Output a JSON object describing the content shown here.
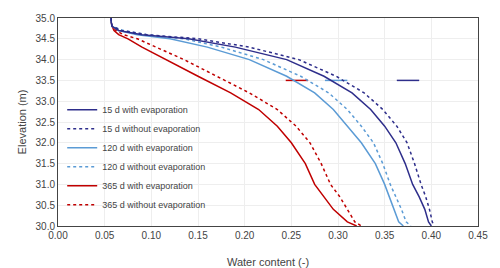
{
  "chart_data": {
    "type": "line",
    "xlabel": "Water content (-)",
    "ylabel": "Elevation (m)",
    "xlim": [
      0,
      0.45
    ],
    "ylim": [
      30,
      35
    ],
    "xticks": [
      {
        "value": 0,
        "label": "0.00"
      },
      {
        "value": 0.05,
        "label": "0.05"
      },
      {
        "value": 0.1,
        "label": "0.10"
      },
      {
        "value": 0.15,
        "label": "0.15"
      },
      {
        "value": 0.2,
        "label": "0.20"
      },
      {
        "value": 0.25,
        "label": "0.25"
      },
      {
        "value": 0.3,
        "label": "0.30"
      },
      {
        "value": 0.35,
        "label": "0.35"
      },
      {
        "value": 0.4,
        "label": "0.40"
      },
      {
        "value": 0.45,
        "label": "0.45"
      }
    ],
    "yticks": [
      {
        "value": 30,
        "label": "30.0"
      },
      {
        "value": 30.5,
        "label": "30.5"
      },
      {
        "value": 31,
        "label": "31.0"
      },
      {
        "value": 31.5,
        "label": "31.5"
      },
      {
        "value": 32,
        "label": "32.0"
      },
      {
        "value": 32.5,
        "label": "32.5"
      },
      {
        "value": 33,
        "label": "33.0"
      },
      {
        "value": 33.5,
        "label": "33.5"
      },
      {
        "value": 34,
        "label": "34.0"
      },
      {
        "value": 34.5,
        "label": "34.5"
      },
      {
        "value": 35,
        "label": "35.0"
      }
    ],
    "grid": true,
    "legend": "center left",
    "series": [
      {
        "name": "15 d with evaporation",
        "color": "#2E2E8B",
        "line_style": "solid",
        "x": [
          0.057,
          0.057,
          0.058,
          0.065,
          0.09,
          0.14,
          0.19,
          0.245,
          0.285,
          0.315,
          0.335,
          0.35,
          0.362,
          0.372,
          0.38,
          0.387,
          0.393,
          0.397,
          0.4
        ],
        "values": [
          35.0,
          34.9,
          34.8,
          34.7,
          34.6,
          34.5,
          34.3,
          34.0,
          33.6,
          33.2,
          32.8,
          32.4,
          32.0,
          31.5,
          31.0,
          30.7,
          30.4,
          30.1,
          30.0
        ]
      },
      {
        "name": "15 d without evaporation",
        "color": "#2E2E8B",
        "line_style": "dotted",
        "x": [
          0.057,
          0.057,
          0.058,
          0.068,
          0.095,
          0.15,
          0.205,
          0.258,
          0.298,
          0.328,
          0.348,
          0.363,
          0.374,
          0.382,
          0.389,
          0.394,
          0.398,
          0.401,
          0.403
        ],
        "values": [
          35.0,
          34.9,
          34.8,
          34.7,
          34.6,
          34.5,
          34.3,
          34.0,
          33.6,
          33.2,
          32.8,
          32.4,
          32.0,
          31.5,
          31.0,
          30.7,
          30.4,
          30.1,
          30.0
        ]
      },
      {
        "name": "120 d with evaporation",
        "color": "#5B9BD5",
        "line_style": "solid",
        "x": [
          0.057,
          0.057,
          0.058,
          0.065,
          0.085,
          0.12,
          0.16,
          0.205,
          0.245,
          0.275,
          0.295,
          0.31,
          0.325,
          0.34,
          0.35,
          0.355,
          0.36,
          0.365,
          0.37
        ],
        "values": [
          35.0,
          34.9,
          34.8,
          34.7,
          34.6,
          34.5,
          34.3,
          34.0,
          33.6,
          33.2,
          32.8,
          32.4,
          32.0,
          31.5,
          31.0,
          30.7,
          30.4,
          30.1,
          30.0
        ]
      },
      {
        "name": "120 d without evaporation",
        "color": "#5B9BD5",
        "line_style": "dotted",
        "x": [
          0.057,
          0.057,
          0.058,
          0.07,
          0.095,
          0.135,
          0.175,
          0.22,
          0.26,
          0.29,
          0.31,
          0.325,
          0.338,
          0.348,
          0.356,
          0.362,
          0.368,
          0.373,
          0.378
        ],
        "values": [
          35.0,
          34.9,
          34.8,
          34.7,
          34.6,
          34.5,
          34.3,
          34.0,
          33.6,
          33.2,
          32.8,
          32.4,
          32.0,
          31.5,
          31.0,
          30.7,
          30.4,
          30.1,
          30.0
        ]
      },
      {
        "name": "365 d with evaporation",
        "color": "#C00000",
        "line_style": "solid",
        "x": [
          0.057,
          0.057,
          0.058,
          0.06,
          0.065,
          0.075,
          0.09,
          0.115,
          0.15,
          0.185,
          0.215,
          0.235,
          0.25,
          0.265,
          0.275,
          0.285,
          0.295,
          0.31,
          0.32
        ],
        "values": [
          35.0,
          34.9,
          34.8,
          34.7,
          34.6,
          34.5,
          34.3,
          34.0,
          33.6,
          33.2,
          32.8,
          32.4,
          32.0,
          31.5,
          31.0,
          30.7,
          30.4,
          30.1,
          30.0
        ]
      },
      {
        "name": "365 d without evaporation",
        "color": "#C00000",
        "line_style": "dotted",
        "x": [
          0.057,
          0.057,
          0.058,
          0.062,
          0.07,
          0.085,
          0.105,
          0.135,
          0.17,
          0.205,
          0.235,
          0.255,
          0.27,
          0.282,
          0.292,
          0.302,
          0.31,
          0.318,
          0.325
        ],
        "values": [
          35.0,
          34.9,
          34.8,
          34.7,
          34.6,
          34.5,
          34.3,
          34.0,
          33.6,
          33.2,
          32.8,
          32.4,
          32.0,
          31.5,
          31.0,
          30.7,
          30.4,
          30.1,
          30.0
        ]
      },
      {
        "color": "#C00000",
        "line_style": "solid",
        "x": [
          0.244,
          0.268
        ],
        "values": [
          33.5,
          33.5
        ]
      },
      {
        "color": "#5B9BD5",
        "line_style": "solid",
        "x": [
          0.286,
          0.31
        ],
        "values": [
          33.5,
          33.5
        ]
      },
      {
        "color": "#2E2E8B",
        "line_style": "solid",
        "x": [
          0.363,
          0.387
        ],
        "values": [
          33.5,
          33.5
        ]
      }
    ]
  }
}
